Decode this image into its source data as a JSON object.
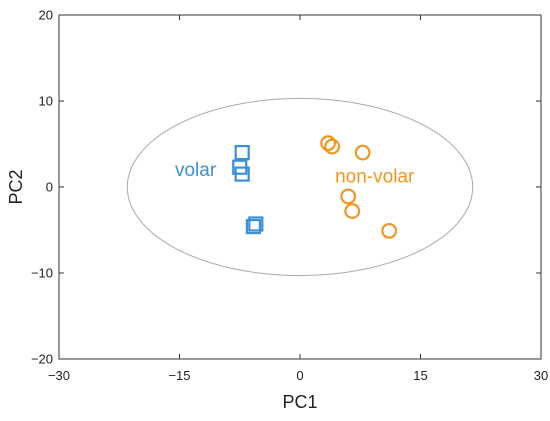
{
  "chart_data": {
    "type": "scatter",
    "title": "",
    "xlabel": "PC1",
    "ylabel": "PC2",
    "xlim": [
      -30,
      30
    ],
    "ylim": [
      -20,
      20
    ],
    "xticks": [
      -30,
      -15,
      0,
      15,
      30
    ],
    "yticks": [
      -20,
      -10,
      0,
      10,
      20
    ],
    "xtick_labels": [
      "−30",
      "−15",
      "0",
      "15",
      "30"
    ],
    "ytick_labels": [
      "−20",
      "−10",
      "0",
      "10",
      "20"
    ],
    "grid": false,
    "legend": "none",
    "confidence_ellipse": {
      "center": [
        0,
        0
      ],
      "rx": 21.5,
      "ry": 10.3,
      "color": "#aaaaaa"
    },
    "series": [
      {
        "name": "volar",
        "marker": "square",
        "color": "#3b8fd9",
        "points": [
          [
            -7.2,
            4.0
          ],
          [
            -7.5,
            2.3
          ],
          [
            -7.2,
            1.5
          ],
          [
            -5.5,
            -4.3
          ],
          [
            -5.8,
            -4.6
          ]
        ]
      },
      {
        "name": "non-volar",
        "marker": "circle",
        "color": "#f0961e",
        "points": [
          [
            3.5,
            5.1
          ],
          [
            4.0,
            4.7
          ],
          [
            7.8,
            4.0
          ],
          [
            6.0,
            -1.1
          ],
          [
            6.5,
            -2.8
          ],
          [
            11.1,
            -5.1
          ]
        ]
      }
    ],
    "annotations": [
      {
        "text": "volar",
        "x": -13,
        "y": 1.3,
        "color": "#3b8fd9"
      },
      {
        "text": "non-volar",
        "x": 9.3,
        "y": 0.5,
        "color": "#f0961e"
      }
    ]
  }
}
